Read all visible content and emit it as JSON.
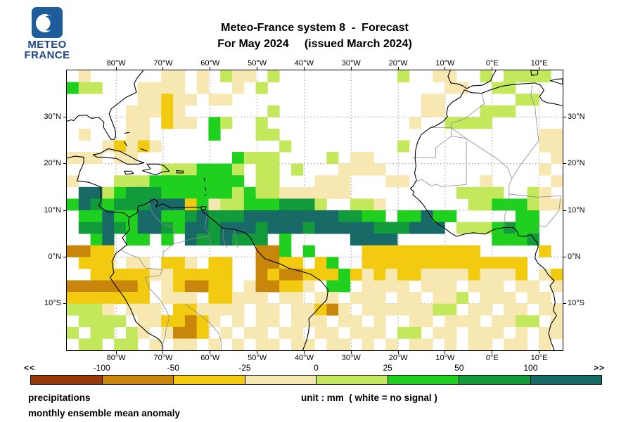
{
  "logo": {
    "line1": "METEO",
    "line2": "FRANCE"
  },
  "title": {
    "line1": "Meteo-France system 8  -  Forecast",
    "line2": "For May 2024     (issued March 2024)"
  },
  "footer": {
    "var_label": "precipitations",
    "stat_label": "monthly ensemble mean anomaly",
    "unit_label": "unit : mm  ( white = no signal )"
  },
  "chart_data": {
    "type": "heatmap",
    "title": "Meteo-France system 8 - Forecast",
    "subtitle": "For May 2024 (issued March 2024)",
    "variable": "precipitations",
    "statistic": "monthly ensemble mean anomaly",
    "unit_note": "unit : mm ( white = no signal )",
    "region": {
      "lon_min": -90.5,
      "lon_max": 15,
      "lat_min": -20,
      "lat_max": 40
    },
    "grid_on": true,
    "lon_ticks": [
      {
        "deg": -80,
        "label": "80°W"
      },
      {
        "deg": -70,
        "label": "70°W"
      },
      {
        "deg": -60,
        "label": "60°W"
      },
      {
        "deg": -50,
        "label": "50°W"
      },
      {
        "deg": -40,
        "label": "40°W"
      },
      {
        "deg": -30,
        "label": "30°W"
      },
      {
        "deg": -20,
        "label": "20°W"
      },
      {
        "deg": -10,
        "label": "10°W"
      },
      {
        "deg": 0,
        "label": "0°E"
      },
      {
        "deg": 10,
        "label": "10°E"
      }
    ],
    "lat_ticks": [
      {
        "deg": 30,
        "label": "30°N"
      },
      {
        "deg": 20,
        "label": "20°N"
      },
      {
        "deg": 10,
        "label": "10°N"
      },
      {
        "deg": 0,
        "label": "0°N"
      },
      {
        "deg": -10,
        "label": "10°S"
      }
    ],
    "legend": {
      "left_arrow": "<<",
      "right_arrow": ">>",
      "boundary_labels": [
        "-100",
        "-50",
        "-25",
        "0",
        "25",
        "50",
        "100"
      ],
      "segment_colors": [
        "#963A09",
        "#C8860B",
        "#F2CB11",
        "#F7E7B0",
        "#C4E85C",
        "#1FD01F",
        "#129B3B",
        "#176A66"
      ],
      "segment_ranges": [
        "< -100",
        "-100 to -50",
        "-50 to -25",
        "-25 to 0",
        "0 to 25",
        "25 to 50",
        "50 to 100",
        "> 100"
      ]
    },
    "cell_size_deg": 2.5,
    "no_signal_char": ".",
    "palette": {
      "1": "#F7E7B0",
      "2": "#F2CB11",
      "3": "#C8860B",
      "4": "#963A09",
      "a": "#C4E85C",
      "b": "#1FD01F",
      "c": "#129B3B",
      "d": "#176A66"
    },
    "palette_meaning": {
      "1": "-25 to 0 mm",
      "2": "-50 to -25 mm",
      "3": "-100 to -50 mm",
      "4": "below -100 mm",
      "a": "0 to 25 mm",
      "b": "25 to 50 mm",
      "c": "50 to 100 mm",
      "d": "above 100 mm",
      ".": "white = no signal"
    },
    "grid_cols": 42,
    "grid_rows_count": 24,
    "grid_rows": [
      ".1......11.1.a11.a..........a..11..a.aaaa.",
      "baa...1111.1..1.a...............11..aa....",
      "......11211.11................11......aa..",
      ".....11121.......a............11...aaa....",
      ".....11.211.ba..a............1..aaaa......",
      ".1...11.....b...aa......................11",
      "...12121..........a.........a...........11",
      "111.11........baaa....a.11...............1",
      "........aaabbba.aa.a...1111.............1.",
      "1...aaabbbbbbbb.aa...111...11......1.....1",
      ".ddabcccbbbbbbabaa111111.........aaaa..a1.",
      "bdcbcccddd2b1aabbbccca..aa1.......aabbba11",
      ".bbdbbddbbcdcccddddddddccbb.bbdbb.....bb..",
      ".ccdcbddcbddcdddcdddcdddddcccddd.aaabcbb..",
      "..bd.bb.b.dccdccc.b.....dddd........bbbc..",
      "3322............33b.b....2222222222.....2.",
      ".222.11.221.22..3322.2b..22222222222222...",
      "..222221122222..3233222b212122111121112.12",
      "3333332.123322.133221.bb.1111.111.111.11.1",
      "2222222.111.22111.11.11.111.11.11a.111.11.",
      "aaa1.111.221111.11.11231.111111aa.11.11.11",
      ".aaaa.1122321.1.11.111.11.1..11.111.11aa.1",
      "a.aa.a1.1332.1.11.11.11.111.aa.11.111.1.11",
      ".aa.aa.1.11.1.1.11.11.11.1.1.11.1.11.11.1."
    ]
  }
}
